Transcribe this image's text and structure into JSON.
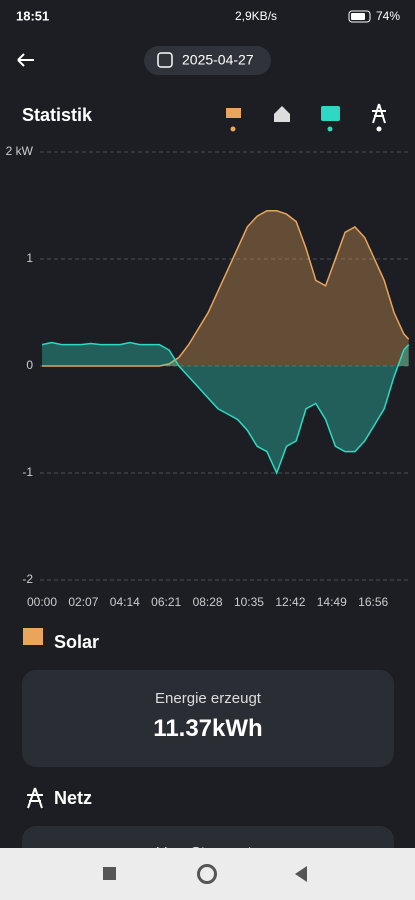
{
  "status_bar": {
    "time": "18:51",
    "speed": "2,9KB/s",
    "battery": "74%"
  },
  "header": {
    "date": "2025-04-27",
    "title": "Statistik"
  },
  "chart_data": {
    "type": "line",
    "x": [
      0,
      30,
      60,
      90,
      120,
      150,
      180,
      210,
      240,
      270,
      300,
      330,
      360,
      390,
      420,
      450,
      480,
      510,
      540,
      570,
      600,
      630,
      660,
      690,
      720,
      750,
      780,
      810,
      840,
      870,
      900,
      930,
      960,
      990,
      1020,
      1050,
      1080,
      1110,
      1125
    ],
    "series": [
      {
        "color": "#e9a55c",
        "values": [
          0,
          0,
          0,
          0,
          0,
          0,
          0,
          0,
          0,
          0,
          0,
          0,
          0,
          0.02,
          0.08,
          0.2,
          0.35,
          0.5,
          0.7,
          0.9,
          1.1,
          1.3,
          1.4,
          1.45,
          1.45,
          1.42,
          1.35,
          1.1,
          0.8,
          0.75,
          1.0,
          1.25,
          1.3,
          1.2,
          1.0,
          0.8,
          0.5,
          0.3,
          0.25
        ]
      },
      {
        "color": "#2ed9c3",
        "values": [
          0.2,
          0.22,
          0.2,
          0.2,
          0.2,
          0.21,
          0.2,
          0.2,
          0.2,
          0.22,
          0.2,
          0.2,
          0.2,
          0.15,
          0,
          -0.1,
          -0.2,
          -0.3,
          -0.4,
          -0.45,
          -0.5,
          -0.6,
          -0.75,
          -0.8,
          -1.0,
          -0.75,
          -0.7,
          -0.4,
          -0.35,
          -0.5,
          -0.75,
          -0.8,
          -0.8,
          -0.7,
          -0.55,
          -0.4,
          -0.1,
          0.15,
          0.2
        ]
      }
    ],
    "xlim": [
      0,
      1129
    ],
    "xticks": [
      {
        "value": 0,
        "label": "00:00"
      },
      {
        "value": 127,
        "label": "02:07"
      },
      {
        "value": 254,
        "label": "04:14"
      },
      {
        "value": 381,
        "label": "06:21"
      },
      {
        "value": 508,
        "label": "08:28"
      },
      {
        "value": 635,
        "label": "10:35"
      },
      {
        "value": 762,
        "label": "12:42"
      },
      {
        "value": 889,
        "label": "14:49"
      },
      {
        "value": 1016,
        "label": "16:56"
      }
    ],
    "ylim": [
      -2,
      2
    ],
    "yticks": [
      {
        "value": 2,
        "label": "2 kW"
      },
      1,
      0,
      -1,
      -2
    ],
    "grid": true
  },
  "sections": [
    {
      "title": "Solar",
      "card_label": "Energie erzeugt",
      "card_value": "11.37kWh"
    },
    {
      "title": "Netz",
      "card_label": "Vom Stromnetz"
    }
  ]
}
